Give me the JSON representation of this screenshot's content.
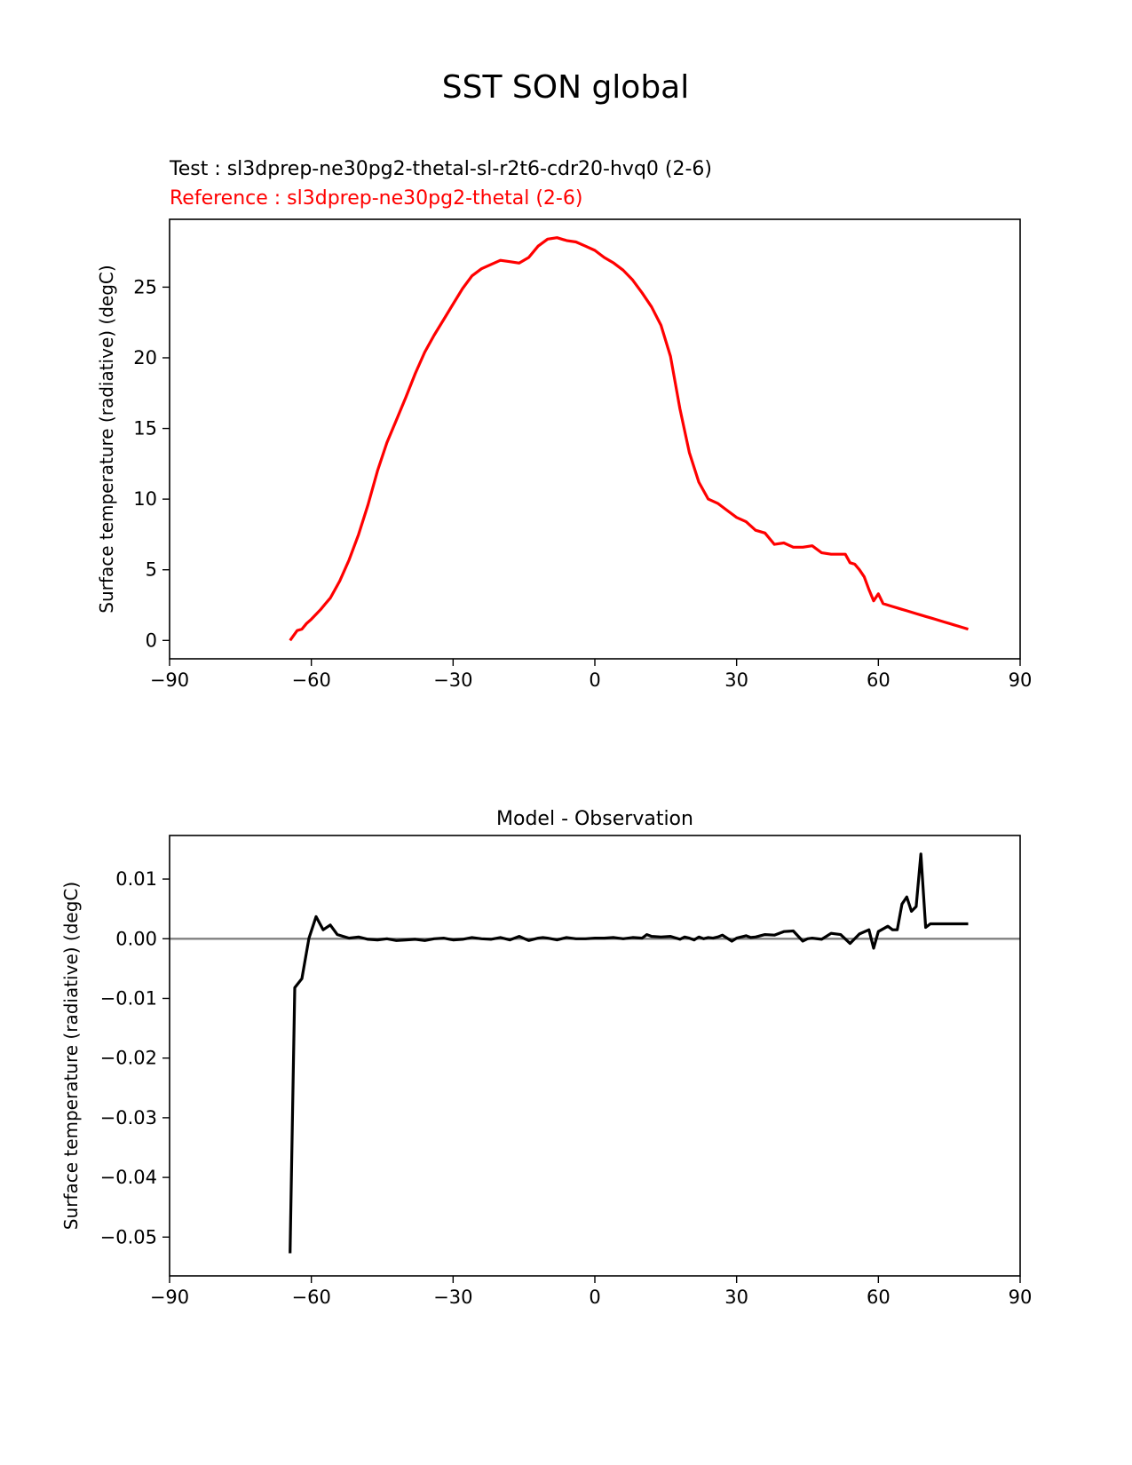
{
  "figure": {
    "suptitle": "SST SON global",
    "test_label": "Test : sl3dprep-ne30pg2-thetal-sl-r2t6-cdr20-hvq0 (2-6)",
    "reference_label": "Reference : sl3dprep-ne30pg2-thetal (2-6)",
    "test_color": "#000000",
    "reference_color": "#ff0000",
    "zero_line_color": "#808080"
  },
  "chart_data": [
    {
      "type": "line",
      "title": "",
      "xlabel": "",
      "ylabel": "Surface temperature (radiative) (degC)",
      "xlim": [
        -90,
        90
      ],
      "ylim": [
        -1.3,
        29.8
      ],
      "xticks": [
        -90,
        -60,
        -30,
        0,
        30,
        60,
        90
      ],
      "xtick_labels": [
        "−90",
        "−60",
        "−30",
        "0",
        "30",
        "60",
        "90"
      ],
      "yticks": [
        0,
        5,
        10,
        15,
        20,
        25
      ],
      "ytick_labels": [
        "0",
        "5",
        "10",
        "15",
        "20",
        "25"
      ],
      "grid": false,
      "series": [
        {
          "color": "#ff0000",
          "x": [
            -64.5,
            -63,
            -62,
            -61,
            -60,
            -58,
            -57,
            -56,
            -54,
            -52,
            -50,
            -48,
            -46,
            -44,
            -42,
            -40,
            -38,
            -36,
            -34,
            -32,
            -30,
            -28,
            -26,
            -24,
            -22,
            -20,
            -18,
            -16,
            -14,
            -12,
            -10,
            -8,
            -6,
            -4,
            -2,
            0,
            2,
            4,
            6,
            8,
            10,
            12,
            14,
            16,
            18,
            20,
            22,
            24,
            26,
            28,
            30,
            32,
            34,
            36,
            38,
            40,
            42,
            44,
            46,
            48,
            50,
            52,
            53,
            54,
            55,
            56,
            57,
            58,
            59,
            60,
            61,
            62,
            63,
            64,
            65,
            66,
            67,
            68,
            69,
            70,
            71,
            72,
            73,
            74,
            75,
            76,
            77,
            78,
            79
          ],
          "y": [
            0,
            0.7,
            0.8,
            1.2,
            1.5,
            2.2,
            2.6,
            3.0,
            4.2,
            5.7,
            7.5,
            9.6,
            12.0,
            14.0,
            15.6,
            17.2,
            18.9,
            20.4,
            21.6,
            22.7,
            23.8,
            24.9,
            25.8,
            26.3,
            26.6,
            26.9,
            26.8,
            26.7,
            27.1,
            27.9,
            28.4,
            28.5,
            28.3,
            28.2,
            27.9,
            27.6,
            27.1,
            26.7,
            26.2,
            25.5,
            24.6,
            23.6,
            22.3,
            20.1,
            16.4,
            13.3,
            11.2,
            10.0,
            9.7,
            9.2,
            8.7,
            8.4,
            7.8,
            7.6,
            6.8,
            6.9,
            6.6,
            6.6,
            6.7,
            6.2,
            6.1,
            6.1,
            6.1,
            5.5,
            5.4,
            5.0,
            4.5,
            3.6,
            2.8,
            3.3,
            2.6,
            2.5,
            2.4,
            2.3,
            2.2,
            2.1,
            2.0,
            1.9,
            1.8,
            1.7,
            1.6,
            1.5,
            1.4,
            1.3,
            1.2,
            1.1,
            1.0,
            0.9,
            0.8
          ]
        }
      ]
    },
    {
      "type": "line",
      "title": "Model - Observation",
      "xlabel": "",
      "ylabel": "Surface temperature (radiative) (degC)",
      "xlim": [
        -90,
        90
      ],
      "ylim": [
        -0.0565,
        0.0173
      ],
      "xticks": [
        -90,
        -60,
        -30,
        0,
        30,
        60,
        90
      ],
      "xtick_labels": [
        "−90",
        "−60",
        "−30",
        "0",
        "30",
        "60",
        "90"
      ],
      "yticks": [
        -0.05,
        -0.04,
        -0.03,
        -0.02,
        -0.01,
        0.0,
        0.01
      ],
      "ytick_labels": [
        "−0.05",
        "−0.04",
        "−0.03",
        "−0.02",
        "−0.01",
        "0.00",
        "0.01"
      ],
      "grid": false,
      "series": [
        {
          "color": "#000000",
          "x": [
            -64.5,
            -63.5,
            -62,
            -60.5,
            -59,
            -57.5,
            -56,
            -54.5,
            -52,
            -50,
            -48,
            -46,
            -44,
            -42,
            -40,
            -38,
            -36,
            -34,
            -32,
            -30,
            -28,
            -26,
            -24,
            -22,
            -20,
            -18,
            -16,
            -14,
            -12,
            -11,
            -10,
            -8,
            -6,
            -4,
            -2,
            0,
            2,
            4,
            6,
            8,
            10,
            11,
            12,
            14,
            16,
            18,
            19,
            20,
            21,
            22,
            23,
            24,
            25,
            26,
            27,
            28,
            29,
            30,
            32,
            33,
            34,
            36,
            38,
            40,
            42,
            44,
            45,
            46,
            48,
            50,
            52,
            54,
            56,
            58,
            59,
            60,
            62,
            63,
            64,
            65,
            66,
            67,
            68,
            69,
            70,
            71,
            72,
            73,
            74,
            75,
            76,
            77,
            78,
            79
          ],
          "y": [
            -0.0527,
            -0.0082,
            -0.0067,
            0.0001,
            0.0037,
            0.0015,
            0.0023,
            0.0007,
            0.0001,
            0.0003,
            -0.0001,
            -0.0002,
            0.0,
            -0.0003,
            -0.0002,
            -0.0001,
            -0.0003,
            0.0,
            0.0001,
            -0.0002,
            -0.0001,
            0.0002,
            0.0,
            -0.0001,
            0.0002,
            -0.0002,
            0.0004,
            -0.0003,
            0.0001,
            0.0002,
            0.0001,
            -0.0002,
            0.0002,
            0.0,
            0.0,
            0.0001,
            0.0001,
            0.0002,
            0.0,
            0.0002,
            0.0001,
            0.0007,
            0.0004,
            0.0003,
            0.0004,
            -0.0001,
            0.0003,
            0.0001,
            -0.0002,
            0.0003,
            0.0,
            0.0002,
            0.0001,
            0.0003,
            0.0006,
            0.0001,
            -0.0004,
            0.0001,
            0.0005,
            0.0002,
            0.0003,
            0.0007,
            0.0006,
            0.0012,
            0.0013,
            -0.0004,
            0.0,
            0.0001,
            -0.0001,
            0.0009,
            0.0007,
            -0.0008,
            0.0008,
            0.0015,
            -0.0016,
            0.0012,
            0.0021,
            0.0015,
            0.0015,
            0.0058,
            0.007,
            0.0046,
            0.0054,
            0.0142,
            0.0019,
            0.0025,
            0.0025,
            0.0025,
            0.0025,
            0.0025,
            0.0025,
            0.0025,
            0.0025,
            0.0025
          ]
        }
      ]
    }
  ]
}
